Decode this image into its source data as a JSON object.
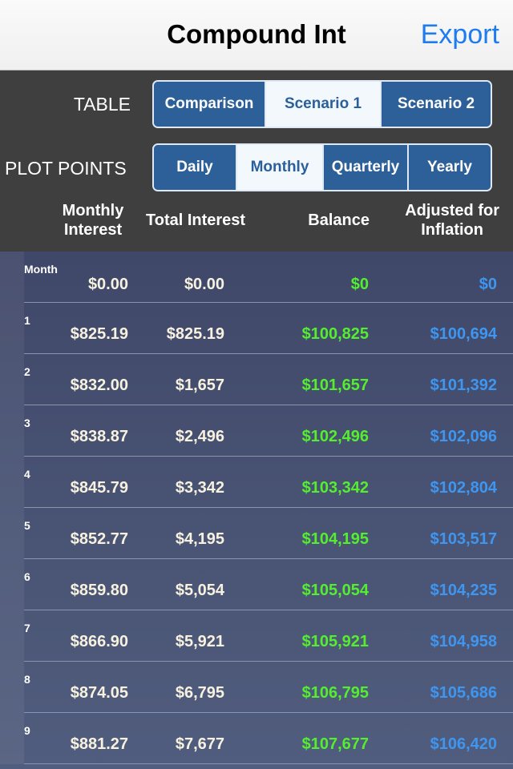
{
  "navbar": {
    "title": "Compound Int",
    "export_label": "Export"
  },
  "table_selector": {
    "label": "TABLE",
    "options": [
      "Comparison",
      "Scenario 1",
      "Scenario 2"
    ],
    "selected": "Scenario 1"
  },
  "plot_points": {
    "label": "PLOT POINTS",
    "options": [
      "Daily",
      "Monthly",
      "Quarterly",
      "Yearly"
    ],
    "selected": "Monthly"
  },
  "columns": {
    "monthly_interest_1": "Monthly",
    "monthly_interest_2": "Interest",
    "total_interest": "Total Interest",
    "balance": "Balance",
    "adjusted_1": "Adjusted for",
    "adjusted_2": "Inflation"
  },
  "rows": [
    {
      "period": "Month",
      "monthly_interest": "$0.00",
      "total_interest": "$0.00",
      "balance": "$0",
      "adjusted": "$0"
    },
    {
      "period": "1",
      "monthly_interest": "$825.19",
      "total_interest": "$825.19",
      "balance": "$100,825",
      "adjusted": "$100,694"
    },
    {
      "period": "2",
      "monthly_interest": "$832.00",
      "total_interest": "$1,657",
      "balance": "$101,657",
      "adjusted": "$101,392"
    },
    {
      "period": "3",
      "monthly_interest": "$838.87",
      "total_interest": "$2,496",
      "balance": "$102,496",
      "adjusted": "$102,096"
    },
    {
      "period": "4",
      "monthly_interest": "$845.79",
      "total_interest": "$3,342",
      "balance": "$103,342",
      "adjusted": "$102,804"
    },
    {
      "period": "5",
      "monthly_interest": "$852.77",
      "total_interest": "$4,195",
      "balance": "$104,195",
      "adjusted": "$103,517"
    },
    {
      "period": "6",
      "monthly_interest": "$859.80",
      "total_interest": "$5,054",
      "balance": "$105,054",
      "adjusted": "$104,235"
    },
    {
      "period": "7",
      "monthly_interest": "$866.90",
      "total_interest": "$5,921",
      "balance": "$105,921",
      "adjusted": "$104,958"
    },
    {
      "period": "8",
      "monthly_interest": "$874.05",
      "total_interest": "$6,795",
      "balance": "$106,795",
      "adjusted": "$105,686"
    },
    {
      "period": "9",
      "monthly_interest": "$881.27",
      "total_interest": "$7,677",
      "balance": "$107,677",
      "adjusted": "$106,420"
    }
  ],
  "colors": {
    "balance": "#54ee2f",
    "adjusted": "#3f96f0",
    "accent": "#1e7cf0",
    "segment": "#2d6099"
  }
}
